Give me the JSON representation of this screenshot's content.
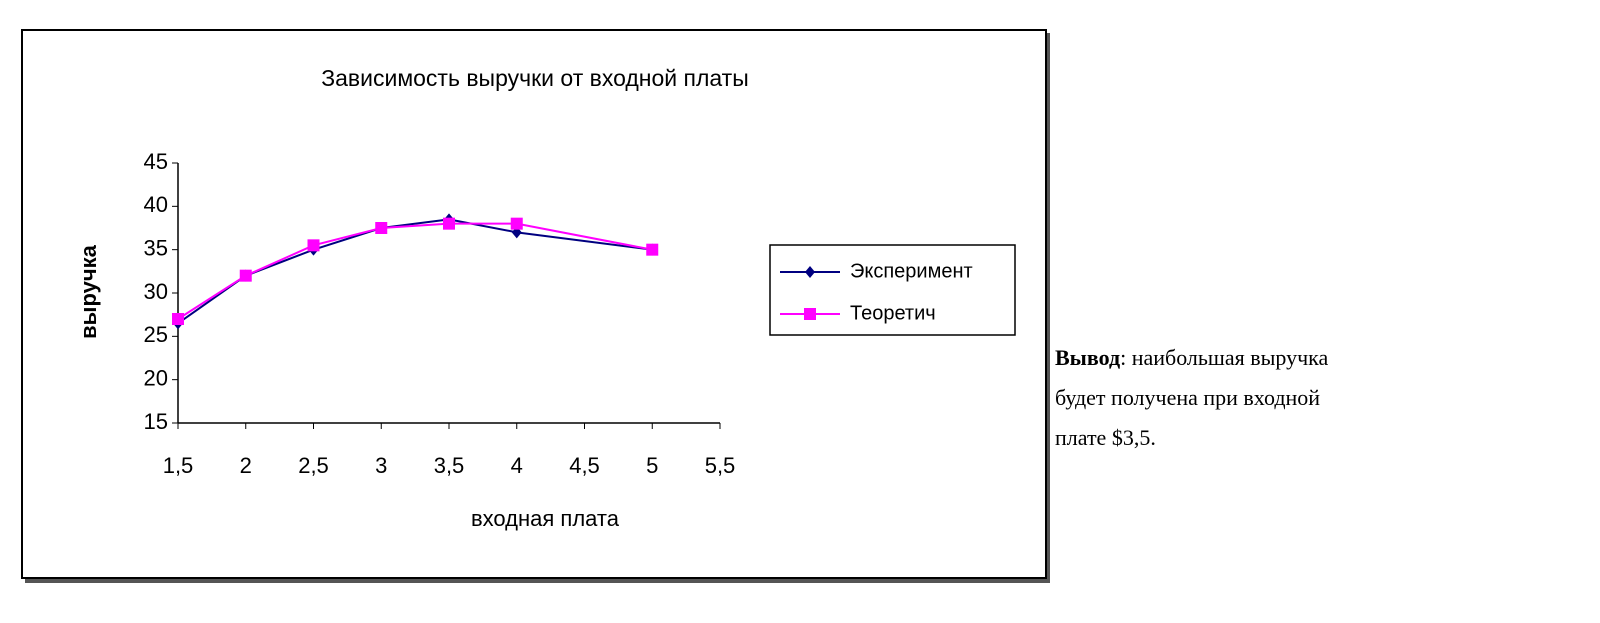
{
  "chart_data": {
    "type": "line",
    "title": "Зависимость выручки от входной платы",
    "x_label": "входная плата",
    "y_label": "выручка",
    "x": [
      1.5,
      2,
      2.5,
      3,
      3.5,
      4,
      5
    ],
    "series": [
      {
        "name": "Эксперимент",
        "color": "#000080",
        "marker": "diamond",
        "values": [
          26.5,
          32,
          35,
          37.5,
          38.5,
          37,
          35
        ]
      },
      {
        "name": "Теоретич",
        "color": "#ff00ff",
        "marker": "square",
        "values": [
          27,
          32,
          35.5,
          37.5,
          38,
          38,
          35
        ]
      }
    ],
    "xlim": [
      1.5,
      5.5
    ],
    "xticks": [
      {
        "value": 1.5,
        "label": "1,5"
      },
      2,
      {
        "value": 2.5,
        "label": "2,5"
      },
      3,
      {
        "value": 3.5,
        "label": "3,5"
      },
      4,
      {
        "value": 4.5,
        "label": "4,5"
      },
      5,
      {
        "value": 5.5,
        "label": "5,5"
      }
    ],
    "ylim": [
      15,
      45
    ],
    "yticks": [
      15,
      20,
      25,
      30,
      35,
      40,
      45
    ],
    "grid": false,
    "legend": "right"
  },
  "conclusion": {
    "label": "Вывод",
    "lines": [
      ": наибольшая выручка",
      " будет получена при входной",
      "плате $3,5."
    ]
  }
}
